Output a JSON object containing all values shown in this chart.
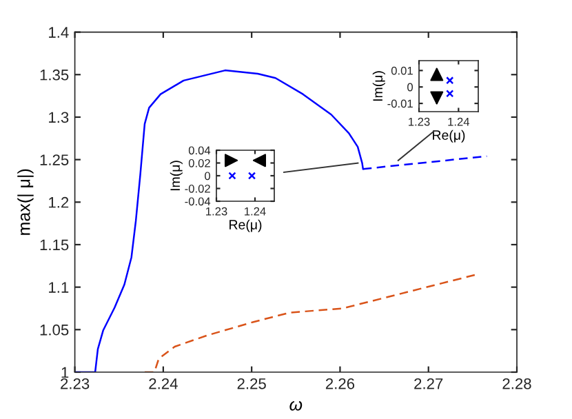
{
  "chart_data": [
    {
      "type": "line",
      "xlabel": "ω",
      "ylabel": "max(| μ|)",
      "xlim": [
        2.23,
        2.28
      ],
      "xticks": [
        2.23,
        2.24,
        2.25,
        2.26,
        2.27,
        2.28
      ],
      "ylim": [
        1,
        1.4
      ],
      "yticks": [
        1,
        1.05,
        1.1,
        1.15,
        1.2,
        1.25,
        1.3,
        1.35,
        1.4
      ],
      "grid": false,
      "legend": false,
      "marker": "none",
      "series": [
        {
          "color": "#0000ff",
          "line_style": "solid",
          "x": [
            2.23,
            2.2323,
            2.2326,
            2.2332,
            2.2345,
            2.2356,
            2.2364,
            2.2369,
            2.2374,
            2.2379,
            2.2384,
            2.2397,
            2.2423,
            2.247,
            2.2507,
            2.2527,
            2.2558,
            2.259,
            2.261,
            2.262,
            2.2625,
            2.2626
          ],
          "values": [
            1,
            1,
            1.027,
            1.049,
            1.076,
            1.103,
            1.135,
            1.178,
            1.232,
            1.292,
            1.311,
            1.327,
            1.343,
            1.355,
            1.351,
            1.346,
            1.327,
            1.303,
            1.281,
            1.265,
            1.246,
            1.239
          ]
        },
        {
          "color": "#0000ff",
          "line_style": "dashed",
          "x": [
            2.2626,
            2.2766
          ],
          "values": [
            1.239,
            1.254
          ]
        },
        {
          "color": "#d95319",
          "line_style": "dashed",
          "x": [
            2.2379,
            2.239,
            2.2395,
            2.2413,
            2.2449,
            2.2502,
            2.2543,
            2.2603,
            2.2755
          ],
          "values": [
            1,
            1,
            1.016,
            1.03,
            1.043,
            1.059,
            1.07,
            1.075,
            1.115
          ]
        }
      ]
    },
    {
      "type": "scatter",
      "xlabel": "Re(μ)",
      "ylabel": "Im(μ)",
      "xlim": [
        1.23,
        1.245
      ],
      "xticks": [
        1.23,
        1.24
      ],
      "ylim": [
        -0.04,
        0.04
      ],
      "yticks": [
        {
          "value": -0.04,
          "label": "-0.04"
        },
        {
          "value": -0.02,
          "label": "-0.02"
        },
        0,
        0.02,
        0.04
      ],
      "grid": false,
      "marker": "cross",
      "series": [
        {
          "color": "#0000ff",
          "x": [
            1.2341,
            1.2392
          ],
          "values": [
            0,
            0
          ]
        }
      ]
    },
    {
      "type": "scatter",
      "xlabel": "Re(μ)",
      "ylabel": "Im(μ)",
      "xlim": [
        1.23,
        1.245
      ],
      "xticks": [
        1.23,
        1.24
      ],
      "ylim": [
        -0.015,
        0.016
      ],
      "yticks": [
        {
          "value": -0.01,
          "label": "-0.01"
        },
        0,
        0.01
      ],
      "grid": false,
      "marker": "cross",
      "series": [
        {
          "color": "#0000ff",
          "x": [
            1.2378,
            1.2378
          ],
          "values": [
            0.004,
            -0.004
          ]
        }
      ]
    }
  ]
}
